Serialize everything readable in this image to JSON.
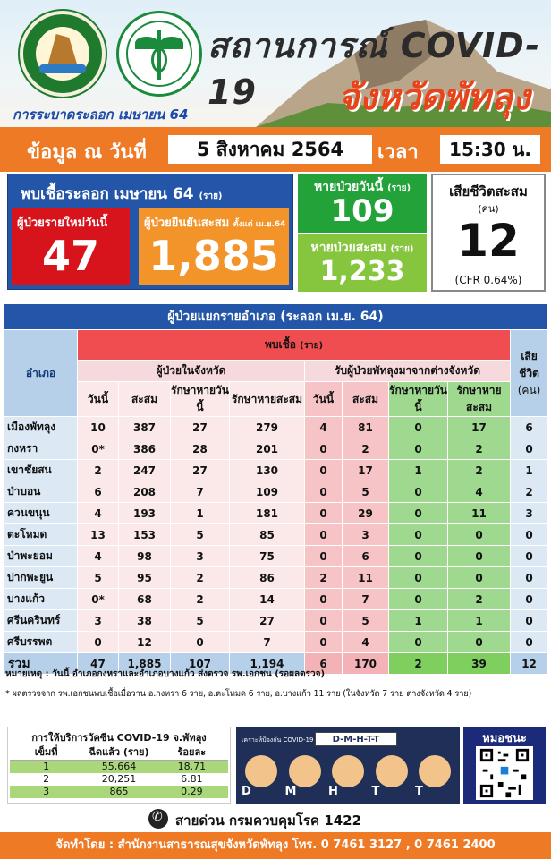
{
  "header": {
    "title_line1": "สถานการณ์ COVID-19",
    "title_line2": "จังหวัดพัทลุง",
    "subtitle": "การระบาดระลอก เมษายน 64"
  },
  "datebar": {
    "label": "ข้อมูล ณ วันที่",
    "date": "5 สิงหาคม 2564",
    "time_label": "เวลา",
    "time": "15:30 น."
  },
  "summary": {
    "found_title": "พบเชื้อระลอก เมษายน 64",
    "unit_rai": "(ราย)",
    "new_today_label": "ผู้ป่วยรายใหม่วันนี้",
    "new_today": "47",
    "cumulative_label": "ผู้ป่วยยืนยันสะสม",
    "cumulative_since": "ตั้งแต่ เม.ย.64",
    "cumulative": "1,885",
    "recovered_today_label": "หายป่วยวันนี้",
    "recovered_today": "109",
    "recovered_total_label": "หายป่วยสะสม",
    "recovered_total": "1,233",
    "death_label": "เสียชีวิตสะสม",
    "death_unit": "(คน)",
    "death": "12",
    "cfr": "(CFR 0.64%)"
  },
  "table": {
    "title": "ผู้ป่วยแยกรายอำเภอ (ระลอก เม.ย. 64)",
    "col_amphoe": "อำเภอ",
    "col_found": "พบเชื้อ",
    "col_found_unit": "(ราย)",
    "col_death": "เสียชีวิต",
    "col_death_unit": "(คน)",
    "group_in": "ผู้ป่วยในจังหวัด",
    "group_out": "รับผู้ป่วยพัทลุงมาจากต่างจังหวัด",
    "sub": [
      "วันนี้",
      "สะสม",
      "รักษาหายวันนี้",
      "รักษาหายสะสม",
      "วันนี้",
      "สะสม",
      "รักษาหายวันนี้",
      "รักษาหายสะสม"
    ],
    "rows": [
      {
        "name": "เมืองพัทลุง",
        "v": [
          "10",
          "387",
          "27",
          "279",
          "4",
          "81",
          "0",
          "17",
          "6"
        ]
      },
      {
        "name": "กงหรา",
        "v": [
          "0*",
          "386",
          "28",
          "201",
          "0",
          "2",
          "0",
          "2",
          "0"
        ]
      },
      {
        "name": "เขาชัยสน",
        "v": [
          "2",
          "247",
          "27",
          "130",
          "0",
          "17",
          "1",
          "2",
          "1"
        ]
      },
      {
        "name": "ป่าบอน",
        "v": [
          "6",
          "208",
          "7",
          "109",
          "0",
          "5",
          "0",
          "4",
          "2"
        ]
      },
      {
        "name": "ควนขนุน",
        "v": [
          "4",
          "193",
          "1",
          "181",
          "0",
          "29",
          "0",
          "11",
          "3"
        ]
      },
      {
        "name": "ตะโหมด",
        "v": [
          "13",
          "153",
          "5",
          "85",
          "0",
          "3",
          "0",
          "0",
          "0"
        ]
      },
      {
        "name": "ป่าพะยอม",
        "v": [
          "4",
          "98",
          "3",
          "75",
          "0",
          "6",
          "0",
          "0",
          "0"
        ]
      },
      {
        "name": "ปากพะยูน",
        "v": [
          "5",
          "95",
          "2",
          "86",
          "2",
          "11",
          "0",
          "0",
          "0"
        ]
      },
      {
        "name": "บางแก้ว",
        "v": [
          "0*",
          "68",
          "2",
          "14",
          "0",
          "7",
          "0",
          "2",
          "0"
        ]
      },
      {
        "name": "ศรีนครินทร์",
        "v": [
          "3",
          "38",
          "5",
          "27",
          "0",
          "5",
          "1",
          "1",
          "0"
        ]
      },
      {
        "name": "ศรีบรรพต",
        "v": [
          "0",
          "12",
          "0",
          "7",
          "0",
          "4",
          "0",
          "0",
          "0"
        ]
      }
    ],
    "total_label": "รวม",
    "total": [
      "47",
      "1,885",
      "107",
      "1,194",
      "6",
      "170",
      "2",
      "39",
      "12"
    ]
  },
  "notes": {
    "note1": "หมายเหตุ : วันนี้ อำเภอกงหราและอำเภอบางแก้ว ส่งตรวจ รพ.เอกชน (รอผลตรวจ)",
    "note2": "* ผลตรวจจาก รพ.เอกชนพบเชื้อเมื่อวาน อ.กงหรา 6 ราย, อ.ตะโหมด 6 ราย, อ.บางแก้ว 11 ราย (ในจังหวัด 7 ราย ต่างจังหวัด 4 ราย)"
  },
  "vaccine": {
    "title": "การให้บริการวัคซีน COVID-19 จ.พัทลุง",
    "headers": [
      "เข็มที่",
      "ฉีดแล้ว (ราย)",
      "ร้อยละ"
    ],
    "rows": [
      [
        "1",
        "55,664",
        "18.71"
      ],
      [
        "2",
        "20,251",
        "6.81"
      ],
      [
        "3",
        "865",
        "0.29"
      ]
    ]
  },
  "dmhtt": {
    "sub": "เคราะห์ป้องกัน COVID-19",
    "title": "D-M-H-T-T",
    "letters": [
      "D",
      "M",
      "H",
      "T",
      "T"
    ]
  },
  "qr": {
    "title": "หมอชนะ"
  },
  "hotline": {
    "text": "สายด่วน กรมควบคุมโรค 1422"
  },
  "footer": {
    "text": "จัดทำโดย : สำนักงานสาธารณสุขจังหวัดพัทลุง โทร. 0 7461 3127 , 0 7461 2400"
  },
  "colors": {
    "orange": "#ef7a26",
    "blue": "#2355a8",
    "red": "#d7141c",
    "green": "#23a23a",
    "lightgreen": "#86c63e"
  }
}
